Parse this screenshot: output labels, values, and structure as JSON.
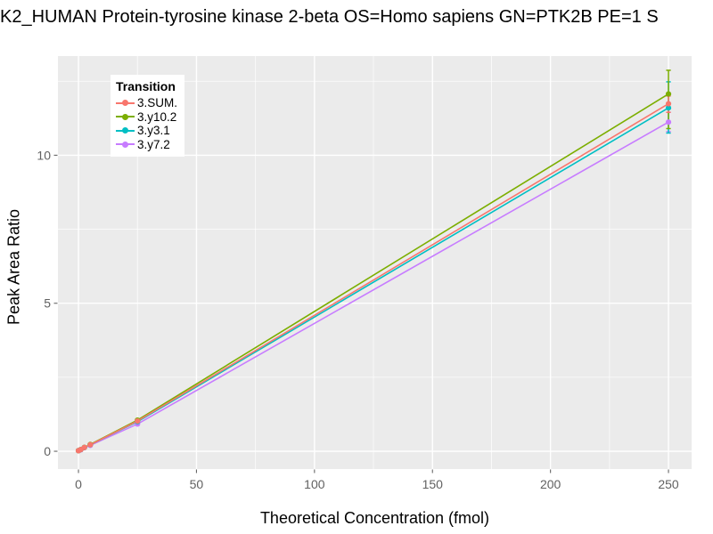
{
  "title": "K2_HUMAN Protein-tyrosine kinase 2-beta OS=Homo sapiens GN=PTK2B PE=1 S",
  "chart_data": {
    "type": "line",
    "title": "K2_HUMAN Protein-tyrosine kinase 2-beta OS=Homo sapiens GN=PTK2B PE=1 S",
    "xlabel": "Theoretical Concentration (fmol)",
    "ylabel": "Peak Area Ratio",
    "x": [
      0,
      1,
      2.5,
      5,
      25,
      250
    ],
    "series": [
      {
        "name": "3.SUM.",
        "color": "#F8766D",
        "values": [
          0.02,
          0.06,
          0.13,
          0.22,
          1.02,
          11.74
        ],
        "error_bars": [
          {
            "x": 250,
            "ymin": 11.45,
            "ymax": 12.0
          }
        ]
      },
      {
        "name": "3.y10.2",
        "color": "#7CAE00",
        "values": [
          0.02,
          0.06,
          0.13,
          0.23,
          1.05,
          12.07
        ],
        "error_bars": [
          {
            "x": 250,
            "ymin": 10.9,
            "ymax": 12.87
          }
        ]
      },
      {
        "name": "3.y3.1",
        "color": "#00BFC4",
        "values": [
          0.02,
          0.06,
          0.13,
          0.22,
          1.0,
          11.6
        ],
        "error_bars": [
          {
            "x": 250,
            "ymin": 10.75,
            "ymax": 12.48
          }
        ]
      },
      {
        "name": "3.y7.2",
        "color": "#C77CFF",
        "values": [
          0.02,
          0.05,
          0.12,
          0.2,
          0.92,
          11.12
        ],
        "error_bars": [
          {
            "x": 250,
            "ymin": 10.8,
            "ymax": 11.45
          }
        ]
      }
    ],
    "x_ticks": [
      0,
      50,
      100,
      150,
      200,
      250
    ],
    "y_ticks": [
      0,
      5,
      10
    ],
    "x_minor": [
      25,
      75,
      125,
      175,
      225
    ],
    "y_minor": [
      2.5,
      7.5,
      12.5
    ],
    "xlim": [
      -8.7,
      259.8
    ],
    "ylim": [
      -0.6,
      13.35
    ],
    "grid": true,
    "legend": {
      "title": "Transition",
      "position": "top-left-inside"
    }
  },
  "colors": {
    "panel_bg": "#EBEBEB",
    "grid_major": "#FFFFFF",
    "grid_minor": "#FFFFFF",
    "tick_text": "#616161",
    "tick_mark": "#666666",
    "title_text": "#000000"
  }
}
